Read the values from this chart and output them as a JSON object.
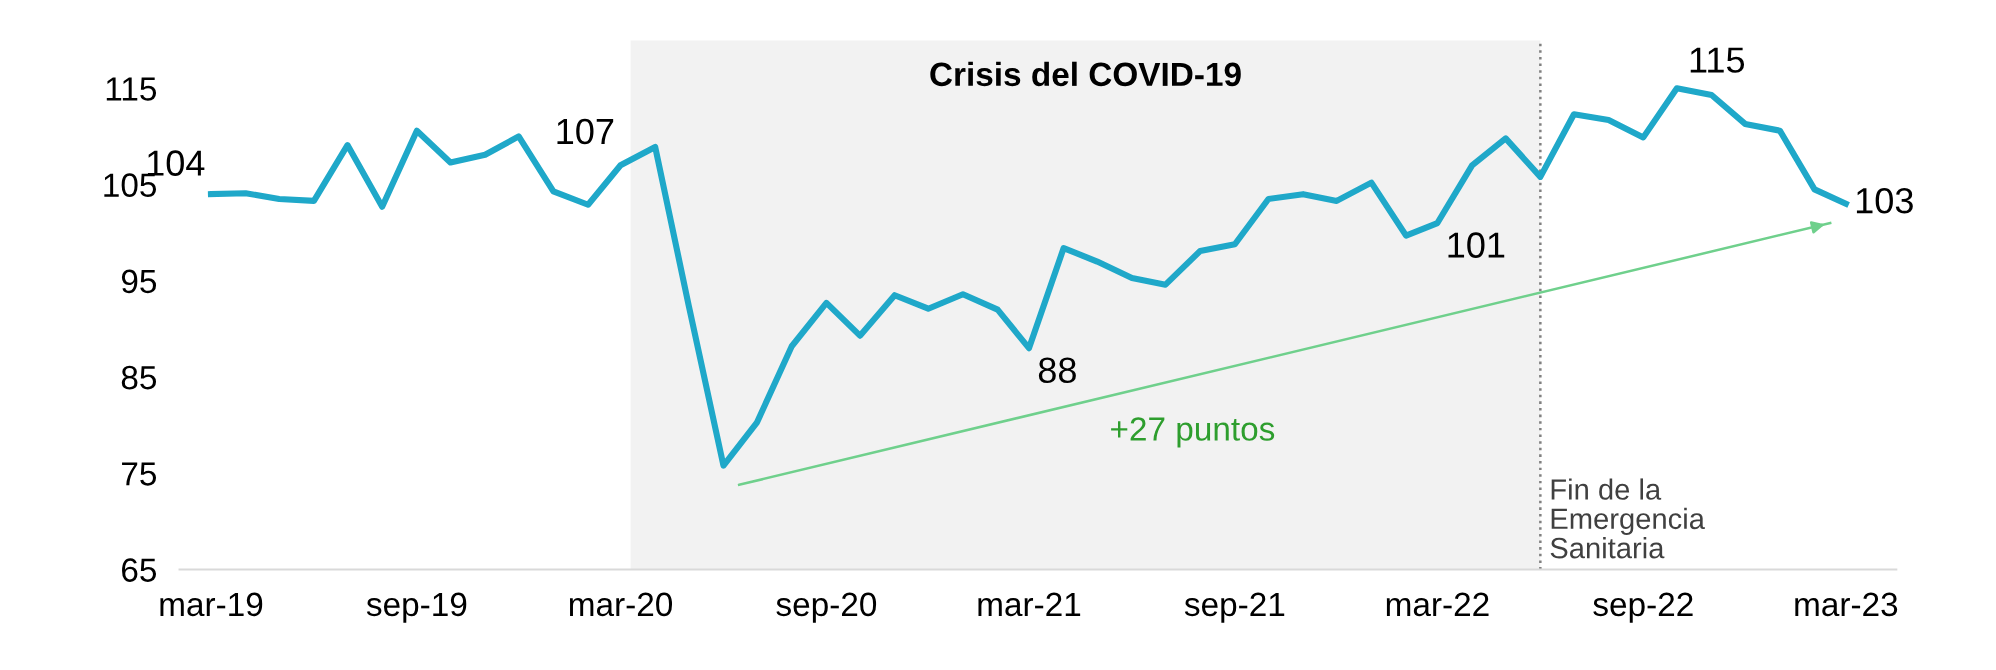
{
  "chart_data": {
    "type": "line",
    "x": [
      "2019-03",
      "2019-04",
      "2019-05",
      "2019-06",
      "2019-07",
      "2019-08",
      "2019-09",
      "2019-10",
      "2019-11",
      "2019-12",
      "2020-01",
      "2020-02",
      "2020-03",
      "2020-04",
      "2020-05",
      "2020-06",
      "2020-07",
      "2020-08",
      "2020-09",
      "2020-10",
      "2020-11",
      "2020-12",
      "2021-01",
      "2021-02",
      "2021-03",
      "2021-04",
      "2021-05",
      "2021-06",
      "2021-07",
      "2021-08",
      "2021-09",
      "2021-10",
      "2021-11",
      "2021-12",
      "2022-01",
      "2022-02",
      "2022-03",
      "2022-04",
      "2022-05",
      "2022-06",
      "2022-07",
      "2022-08",
      "2022-09",
      "2022-10",
      "2022-11",
      "2022-12",
      "2023-01",
      "2023-02",
      "2023-03"
    ],
    "series": [
      {
        "color": "#1fa8c9",
        "values": [
          104,
          104.1,
          103.5,
          103.3,
          109.1,
          102.7,
          110.6,
          107.3,
          108.1,
          110.0,
          104.3,
          102.9,
          107,
          108.9,
          92.4,
          75.8,
          80.3,
          88.2,
          92.7,
          89.3,
          93.5,
          92.1,
          93.6,
          92.0,
          88,
          98.4,
          97.0,
          95.3,
          94.6,
          98.1,
          98.8,
          103.5,
          104.0,
          103.3,
          105.2,
          99.7,
          101,
          107.0,
          109.8,
          105.8,
          112.3,
          111.7,
          109.9,
          115,
          114.3,
          111.3,
          110.6,
          104.5,
          103
        ],
        "value_labels": [
          "104",
          null,
          null,
          null,
          null,
          null,
          null,
          null,
          null,
          null,
          null,
          null,
          "107",
          null,
          null,
          null,
          null,
          null,
          null,
          null,
          null,
          null,
          null,
          null,
          "88",
          null,
          null,
          null,
          null,
          null,
          null,
          null,
          null,
          null,
          null,
          null,
          "101",
          null,
          null,
          null,
          null,
          null,
          null,
          "115",
          null,
          null,
          null,
          null,
          "103"
        ]
      },
      {
        "type": "line",
        "color": "#6fd08c",
        "x": [
          "2020-06-15",
          "2023-02-15"
        ],
        "values": [
          73.8,
          101.0
        ]
      }
    ],
    "xlim": [
      "2019-02",
      "2023-04-15"
    ],
    "xticks": [
      {
        "value": "2019-03",
        "label": "mar-19"
      },
      {
        "value": "2019-09",
        "label": "sep-19"
      },
      {
        "value": "2020-03",
        "label": "mar-20"
      },
      {
        "value": "2020-09",
        "label": "sep-20"
      },
      {
        "value": "2021-03",
        "label": "mar-21"
      },
      {
        "value": "2021-09",
        "label": "sep-21"
      },
      {
        "value": "2022-03",
        "label": "mar-22"
      },
      {
        "value": "2022-09",
        "label": "sep-22"
      },
      {
        "value": "2023-03",
        "label": "mar-23"
      }
    ],
    "ylim": [
      65,
      120
    ],
    "yticks": [
      65,
      75,
      85,
      95,
      105,
      115
    ],
    "bands": [
      {
        "axis": "x",
        "from": "2020-03-10",
        "to": "2022-06",
        "label": "Crisis del COVID-19",
        "color": "#f2f2f2"
      }
    ],
    "ref_lines": [
      {
        "axis": "x",
        "value": "2022-06",
        "label": "Fin de la\nEmergencia\nSanitaria",
        "color": "#808080",
        "line_style": "dotted"
      }
    ],
    "annotations": [
      "+27 puntos"
    ],
    "grid": false,
    "legend": false,
    "marker": "none",
    "line_style": "solid"
  }
}
